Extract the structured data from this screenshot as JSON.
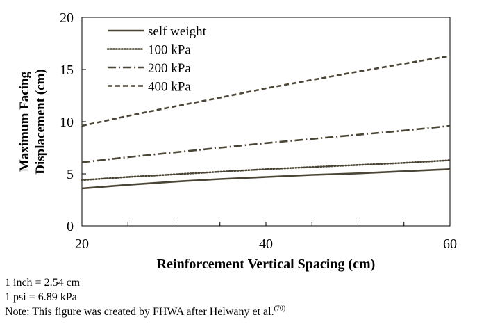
{
  "chart_data": {
    "type": "line",
    "xlabel": "Reinforcement Vertical Spacing (cm)",
    "ylabel_lines": [
      "Maximum Facing",
      "Displacement (cm)"
    ],
    "xlim": [
      20,
      60
    ],
    "ylim": [
      0,
      20
    ],
    "x_major_ticks": [
      20,
      40,
      60
    ],
    "x_minor_step": 5,
    "y_ticks": [
      0,
      5,
      10,
      15,
      20
    ],
    "grid": false,
    "legend_position": "top-left",
    "series": [
      {
        "name": "self weight",
        "style": "solid",
        "color": "#4b4535",
        "x": [
          20,
          25,
          30,
          35,
          40,
          45,
          50,
          55,
          60
        ],
        "y": [
          3.6,
          3.95,
          4.25,
          4.5,
          4.7,
          4.9,
          5.05,
          5.25,
          5.45
        ]
      },
      {
        "name": "100 kPa",
        "style": "dotted",
        "color": "#4b4535",
        "x": [
          20,
          25,
          30,
          35,
          40,
          45,
          50,
          55,
          60
        ],
        "y": [
          4.4,
          4.7,
          4.95,
          5.2,
          5.45,
          5.65,
          5.85,
          6.05,
          6.3
        ]
      },
      {
        "name": "200 kPa",
        "style": "dashdot",
        "color": "#4b4535",
        "x": [
          20,
          25,
          30,
          35,
          40,
          45,
          50,
          55,
          60
        ],
        "y": [
          6.1,
          6.6,
          7.05,
          7.5,
          7.95,
          8.35,
          8.75,
          9.15,
          9.6
        ]
      },
      {
        "name": "400 kPa",
        "style": "dashed",
        "color": "#4b4535",
        "x": [
          20,
          25,
          30,
          35,
          40,
          45,
          50,
          55,
          60
        ],
        "y": [
          9.6,
          10.55,
          11.45,
          12.3,
          13.2,
          14.0,
          14.8,
          15.55,
          16.3
        ]
      }
    ]
  },
  "notes": {
    "line1": "1 inch = 2.54 cm",
    "line2": "1 psi = 6.89 kPa",
    "line3": "Note: This figure was created by FHWA after Helwany et al.",
    "line3_superscript": "(70)"
  }
}
